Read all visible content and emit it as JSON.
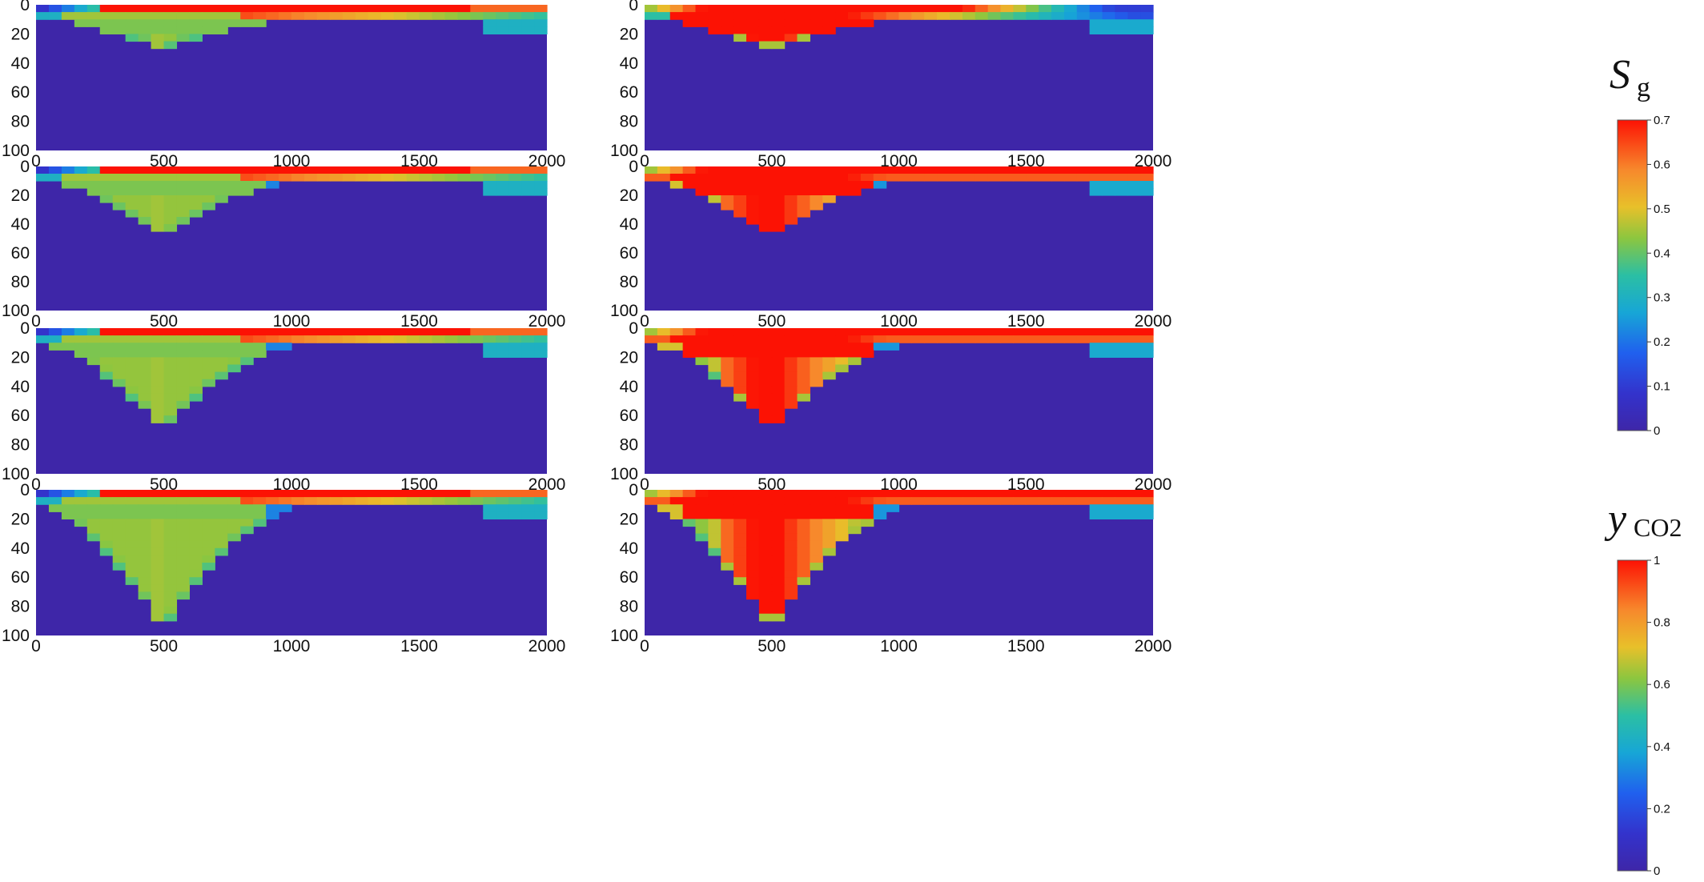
{
  "chart_data": [
    {
      "type": "heatmap",
      "variable": "S_g",
      "panel": "row 1 left",
      "xlim": [
        0,
        2000
      ],
      "ylim": [
        100,
        0
      ],
      "x_ticks": [
        "0",
        "500",
        "1000",
        "1500",
        "2000"
      ],
      "y_ticks": [
        "0",
        "20",
        "40",
        "60",
        "80",
        "100"
      ],
      "colormap": "jet",
      "clim": [
        0,
        0.7
      ],
      "plume": {
        "source_x": 500,
        "plume_depth": 30,
        "top_layer_extent_x": 2000,
        "max_value": 0.7,
        "plume_core_value": 0.45
      }
    },
    {
      "type": "heatmap",
      "variable": "y_CO2",
      "panel": "row 1 right",
      "xlim": [
        0,
        2000
      ],
      "ylim": [
        100,
        0
      ],
      "x_ticks": [
        "0",
        "500",
        "1000",
        "1500",
        "2000"
      ],
      "y_ticks": [
        "0",
        "20",
        "40",
        "60",
        "80",
        "100"
      ],
      "colormap": "jet",
      "clim": [
        0,
        1
      ],
      "plume": {
        "source_x": 500,
        "plume_depth": 30,
        "top_layer_extent_x": 2000,
        "max_value": 1.0
      }
    },
    {
      "type": "heatmap",
      "variable": "S_g",
      "panel": "row 2 left",
      "xlim": [
        0,
        2000
      ],
      "ylim": [
        100,
        0
      ],
      "x_ticks": [
        "0",
        "500",
        "1000",
        "1500",
        "2000"
      ],
      "y_ticks": [
        "0",
        "20",
        "40",
        "60",
        "80",
        "100"
      ],
      "colormap": "jet",
      "clim": [
        0,
        0.7
      ],
      "plume": {
        "source_x": 500,
        "plume_depth": 50,
        "top_layer_extent_x": 2000,
        "max_value": 0.7,
        "plume_core_value": 0.42
      }
    },
    {
      "type": "heatmap",
      "variable": "y_CO2",
      "panel": "row 2 right",
      "xlim": [
        0,
        2000
      ],
      "ylim": [
        100,
        0
      ],
      "x_ticks": [
        "0",
        "500",
        "1000",
        "1500",
        "2000"
      ],
      "y_ticks": [
        "0",
        "20",
        "40",
        "60",
        "80",
        "100"
      ],
      "colormap": "jet",
      "clim": [
        0,
        1
      ],
      "plume": {
        "source_x": 500,
        "plume_depth": 50,
        "top_layer_extent_x": 2000,
        "max_value": 1.0
      }
    },
    {
      "type": "heatmap",
      "variable": "S_g",
      "panel": "row 3 left",
      "xlim": [
        0,
        2000
      ],
      "ylim": [
        100,
        0
      ],
      "x_ticks": [
        "0",
        "500",
        "1000",
        "1500",
        "2000"
      ],
      "y_ticks": [
        "0",
        "20",
        "40",
        "60",
        "80",
        "100"
      ],
      "colormap": "jet",
      "clim": [
        0,
        0.7
      ],
      "plume": {
        "source_x": 500,
        "plume_depth": 70,
        "top_layer_extent_x": 2000,
        "max_value": 0.7,
        "plume_core_value": 0.42
      }
    },
    {
      "type": "heatmap",
      "variable": "y_CO2",
      "panel": "row 3 right",
      "xlim": [
        0,
        2000
      ],
      "ylim": [
        100,
        0
      ],
      "x_ticks": [
        "0",
        "500",
        "1000",
        "1500",
        "2000"
      ],
      "y_ticks": [
        "0",
        "20",
        "40",
        "60",
        "80",
        "100"
      ],
      "colormap": "jet",
      "clim": [
        0,
        1
      ],
      "plume": {
        "source_x": 500,
        "plume_depth": 70,
        "top_layer_extent_x": 2000,
        "max_value": 1.0
      }
    },
    {
      "type": "heatmap",
      "variable": "S_g",
      "panel": "row 4 left",
      "xlim": [
        0,
        2000
      ],
      "ylim": [
        100,
        0
      ],
      "x_ticks": [
        "0",
        "500",
        "1000",
        "1500",
        "2000"
      ],
      "y_ticks": [
        "0",
        "20",
        "40",
        "60",
        "80",
        "100"
      ],
      "colormap": "jet",
      "clim": [
        0,
        0.7
      ],
      "plume": {
        "source_x": 500,
        "plume_depth": 95,
        "top_layer_extent_x": 2000,
        "max_value": 0.7,
        "plume_core_value": 0.42
      }
    },
    {
      "type": "heatmap",
      "variable": "y_CO2",
      "panel": "row 4 right",
      "xlim": [
        0,
        2000
      ],
      "ylim": [
        100,
        0
      ],
      "x_ticks": [
        "0",
        "500",
        "1000",
        "1500",
        "2000"
      ],
      "y_ticks": [
        "0",
        "20",
        "40",
        "60",
        "80",
        "100"
      ],
      "colormap": "jet",
      "clim": [
        0,
        1
      ],
      "plume": {
        "source_x": 500,
        "plume_depth": 95,
        "top_layer_extent_x": 2000,
        "max_value": 1.0
      }
    }
  ],
  "colorbars": [
    {
      "symbol": "S",
      "subscript": "g",
      "ticks": [
        "0",
        "0.1",
        "0.2",
        "0.3",
        "0.4",
        "0.5",
        "0.6",
        "0.7"
      ],
      "range": [
        0,
        0.7
      ]
    },
    {
      "symbol": "y",
      "subscript": "CO2",
      "ticks": [
        "0",
        "0.2",
        "0.4",
        "0.6",
        "0.8",
        "1"
      ],
      "range": [
        0,
        1
      ]
    }
  ]
}
